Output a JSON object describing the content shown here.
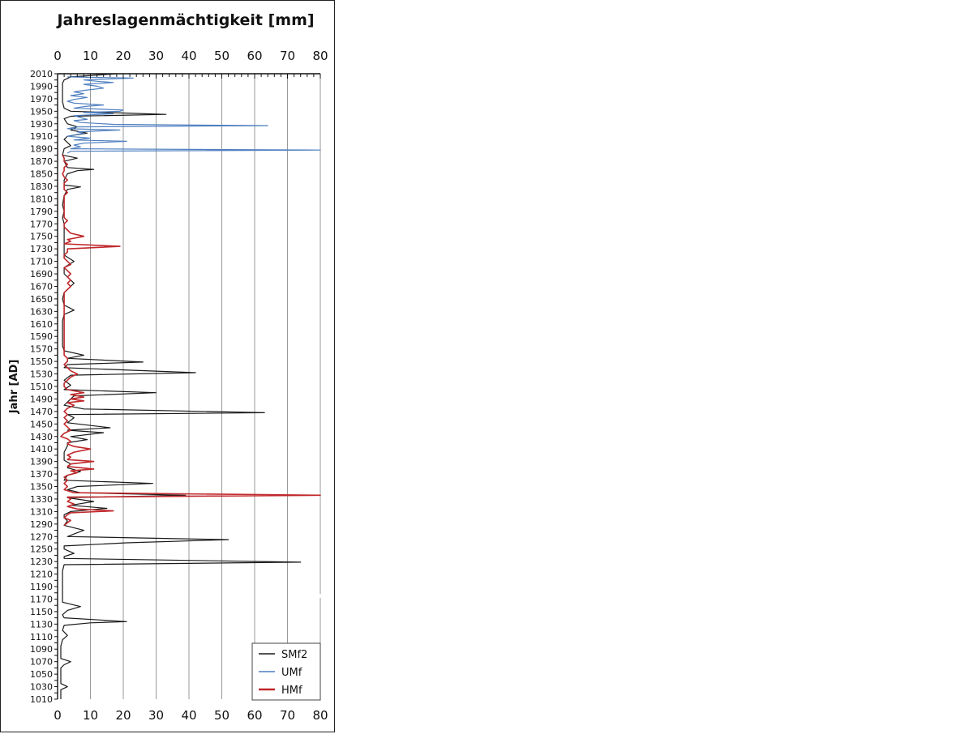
{
  "chart_data": {
    "type": "line",
    "orientation": "vertical",
    "title": "Jahreslagenmächtigkeit [mm]",
    "xlabel": "Jahreslagenmächtigkeit [mm]",
    "ylabel": "Jahr [AD]",
    "xlim": [
      0,
      80
    ],
    "ylim": [
      1010,
      2010
    ],
    "x_ticks": [
      "0",
      "10",
      "20",
      "30",
      "40",
      "50",
      "60",
      "70",
      "80"
    ],
    "y_ticks": [
      "2010",
      "1990",
      "1970",
      "1950",
      "1930",
      "1910",
      "1890",
      "1870",
      "1850",
      "1830",
      "1810",
      "1790",
      "1770",
      "1750",
      "1730",
      "1710",
      "1690",
      "1670",
      "1650",
      "1630",
      "1610",
      "1590",
      "1570",
      "1550",
      "1530",
      "1510",
      "1490",
      "1470",
      "1450",
      "1430",
      "1410",
      "1390",
      "1370",
      "1350",
      "1330",
      "1310",
      "1290",
      "1270",
      "1250",
      "1230",
      "1210",
      "1190",
      "1170",
      "1150",
      "1130",
      "1110",
      "1090",
      "1070",
      "1050",
      "1030",
      "1010"
    ],
    "grid": "vertical",
    "legend_position": "bottom-right",
    "series": [
      {
        "name": "SMf2",
        "color": "#1a1a1a",
        "points": [
          [
            2010,
            18
          ],
          [
            2005,
            4
          ],
          [
            2000,
            2
          ],
          [
            1995,
            1.5
          ],
          [
            1985,
            1.5
          ],
          [
            1975,
            1.5
          ],
          [
            1965,
            1.5
          ],
          [
            1955,
            2
          ],
          [
            1950,
            4
          ],
          [
            1947,
            21
          ],
          [
            1945,
            33
          ],
          [
            1942,
            4
          ],
          [
            1938,
            2
          ],
          [
            1930,
            3
          ],
          [
            1925,
            6
          ],
          [
            1920,
            4
          ],
          [
            1915,
            9
          ],
          [
            1910,
            3
          ],
          [
            1905,
            2
          ],
          [
            1900,
            3
          ],
          [
            1895,
            4
          ],
          [
            1890,
            2
          ],
          [
            1880,
            1.5
          ],
          [
            1875,
            6
          ],
          [
            1870,
            2
          ],
          [
            1860,
            3
          ],
          [
            1857,
            11
          ],
          [
            1855,
            6
          ],
          [
            1850,
            3
          ],
          [
            1840,
            2
          ],
          [
            1832,
            2
          ],
          [
            1829,
            7
          ],
          [
            1825,
            3
          ],
          [
            1815,
            2
          ],
          [
            1800,
            1.5
          ],
          [
            1790,
            2
          ],
          [
            1780,
            1.5
          ],
          [
            1770,
            2
          ],
          [
            1760,
            2
          ],
          [
            1750,
            2
          ],
          [
            1740,
            2
          ],
          [
            1730,
            2
          ],
          [
            1720,
            2
          ],
          [
            1710,
            5
          ],
          [
            1700,
            2
          ],
          [
            1690,
            2
          ],
          [
            1685,
            3
          ],
          [
            1675,
            5
          ],
          [
            1670,
            4
          ],
          [
            1660,
            2
          ],
          [
            1650,
            1.5
          ],
          [
            1640,
            2
          ],
          [
            1632,
            5
          ],
          [
            1625,
            2
          ],
          [
            1615,
            1.5
          ],
          [
            1605,
            1.5
          ],
          [
            1595,
            1.5
          ],
          [
            1585,
            1.5
          ],
          [
            1575,
            1.5
          ],
          [
            1567,
            2
          ],
          [
            1560,
            8
          ],
          [
            1555,
            3
          ],
          [
            1549,
            26
          ],
          [
            1545,
            3
          ],
          [
            1540,
            2
          ],
          [
            1532,
            42
          ],
          [
            1528,
            4
          ],
          [
            1520,
            2
          ],
          [
            1512,
            4
          ],
          [
            1505,
            2
          ],
          [
            1500,
            30
          ],
          [
            1495,
            5
          ],
          [
            1485,
            3
          ],
          [
            1480,
            2
          ],
          [
            1474,
            8
          ],
          [
            1468,
            63
          ],
          [
            1465,
            3
          ],
          [
            1460,
            5
          ],
          [
            1452,
            3
          ],
          [
            1444,
            16
          ],
          [
            1440,
            3
          ],
          [
            1436,
            14
          ],
          [
            1430,
            4
          ],
          [
            1425,
            9
          ],
          [
            1420,
            3
          ],
          [
            1415,
            3
          ],
          [
            1405,
            2
          ],
          [
            1400,
            2
          ],
          [
            1392,
            2
          ],
          [
            1386,
            4
          ],
          [
            1380,
            3
          ],
          [
            1374,
            7
          ],
          [
            1368,
            3
          ],
          [
            1360,
            2
          ],
          [
            1355,
            29
          ],
          [
            1350,
            6
          ],
          [
            1345,
            3
          ],
          [
            1340,
            7
          ],
          [
            1336,
            39
          ],
          [
            1332,
            3
          ],
          [
            1326,
            11
          ],
          [
            1320,
            4
          ],
          [
            1315,
            15
          ],
          [
            1310,
            4
          ],
          [
            1305,
            2
          ],
          [
            1300,
            2
          ],
          [
            1295,
            3
          ],
          [
            1288,
            2
          ],
          [
            1280,
            8
          ],
          [
            1276,
            6
          ],
          [
            1270,
            3
          ],
          [
            1265,
            52
          ],
          [
            1260,
            21
          ],
          [
            1255,
            2
          ],
          [
            1250,
            2
          ],
          [
            1243,
            5
          ],
          [
            1238,
            2
          ],
          [
            1235,
            2
          ],
          [
            1229,
            74
          ],
          [
            1225,
            2
          ],
          [
            1215,
            1.5
          ],
          [
            1205,
            1.5
          ],
          [
            1195,
            1.5
          ],
          [
            1185,
            1.5
          ],
          [
            1175,
            1.5
          ],
          [
            1165,
            1.5
          ],
          [
            1158,
            7
          ],
          [
            1152,
            3
          ],
          [
            1145,
            1.5
          ],
          [
            1140,
            2
          ],
          [
            1134,
            21
          ],
          [
            1132,
            10
          ],
          [
            1128,
            2
          ],
          [
            1120,
            1.5
          ],
          [
            1112,
            3
          ],
          [
            1105,
            1.5
          ],
          [
            1095,
            1
          ],
          [
            1085,
            1
          ],
          [
            1075,
            1
          ],
          [
            1070,
            4
          ],
          [
            1065,
            2
          ],
          [
            1060,
            1
          ],
          [
            1055,
            1
          ],
          [
            1050,
            1
          ],
          [
            1045,
            1
          ],
          [
            1040,
            1
          ],
          [
            1035,
            1
          ],
          [
            1030,
            3
          ],
          [
            1025,
            1
          ],
          [
            1020,
            1
          ],
          [
            1015,
            1
          ],
          [
            1010,
            1
          ]
        ]
      },
      {
        "name": "UMf",
        "color": "#4f7fc0",
        "points": [
          [
            2005,
            3
          ],
          [
            2003,
            23
          ],
          [
            2000,
            8
          ],
          [
            1998,
            12
          ],
          [
            1996,
            17
          ],
          [
            1993,
            8
          ],
          [
            1990,
            12
          ],
          [
            1987,
            14
          ],
          [
            1984,
            9
          ],
          [
            1981,
            5
          ],
          [
            1978,
            8
          ],
          [
            1975,
            4
          ],
          [
            1972,
            9
          ],
          [
            1969,
            5
          ],
          [
            1966,
            3
          ],
          [
            1963,
            5
          ],
          [
            1960,
            14
          ],
          [
            1958,
            9
          ],
          [
            1955,
            5
          ],
          [
            1952,
            20
          ],
          [
            1950,
            19
          ],
          [
            1948,
            8
          ],
          [
            1946,
            17
          ],
          [
            1943,
            5
          ],
          [
            1940,
            7
          ],
          [
            1937,
            9
          ],
          [
            1935,
            5
          ],
          [
            1932,
            7
          ],
          [
            1929,
            17
          ],
          [
            1927,
            64
          ],
          [
            1925,
            6
          ],
          [
            1922,
            3
          ],
          [
            1920,
            19
          ],
          [
            1917,
            6
          ],
          [
            1915,
            8
          ],
          [
            1912,
            5
          ],
          [
            1910,
            3
          ],
          [
            1907,
            10
          ],
          [
            1904,
            5
          ],
          [
            1902,
            21
          ],
          [
            1899,
            8
          ],
          [
            1896,
            5
          ],
          [
            1893,
            7
          ],
          [
            1890,
            4
          ],
          [
            1888,
            80
          ],
          [
            1886,
            4
          ],
          [
            1883,
            3
          ]
        ]
      },
      {
        "name": "HMf",
        "color": "#c0282b",
        "points": [
          [
            1880,
            1.5
          ],
          [
            1875,
            2
          ],
          [
            1870,
            2
          ],
          [
            1865,
            3
          ],
          [
            1860,
            2
          ],
          [
            1855,
            2
          ],
          [
            1850,
            1.5
          ],
          [
            1845,
            2
          ],
          [
            1840,
            3
          ],
          [
            1835,
            2
          ],
          [
            1830,
            2
          ],
          [
            1825,
            2
          ],
          [
            1820,
            3
          ],
          [
            1815,
            2
          ],
          [
            1810,
            2
          ],
          [
            1805,
            2
          ],
          [
            1800,
            2
          ],
          [
            1795,
            2
          ],
          [
            1790,
            2
          ],
          [
            1785,
            2
          ],
          [
            1780,
            2
          ],
          [
            1775,
            3
          ],
          [
            1770,
            2
          ],
          [
            1765,
            2
          ],
          [
            1760,
            3
          ],
          [
            1755,
            4
          ],
          [
            1750,
            8
          ],
          [
            1745,
            3
          ],
          [
            1742,
            4
          ],
          [
            1738,
            2
          ],
          [
            1734,
            19
          ],
          [
            1730,
            3
          ],
          [
            1725,
            3
          ],
          [
            1720,
            2
          ],
          [
            1715,
            2
          ],
          [
            1710,
            3
          ],
          [
            1705,
            4
          ],
          [
            1700,
            2
          ],
          [
            1695,
            3
          ],
          [
            1690,
            4
          ],
          [
            1685,
            3
          ],
          [
            1680,
            4
          ],
          [
            1675,
            3
          ],
          [
            1670,
            4
          ],
          [
            1665,
            3
          ],
          [
            1660,
            2
          ],
          [
            1570,
            2
          ],
          [
            1565,
            2
          ],
          [
            1560,
            2
          ],
          [
            1555,
            3
          ],
          [
            1550,
            3
          ],
          [
            1545,
            2
          ],
          [
            1540,
            3
          ],
          [
            1535,
            4
          ],
          [
            1530,
            6
          ],
          [
            1525,
            4
          ],
          [
            1520,
            3
          ],
          [
            1515,
            2
          ],
          [
            1510,
            2
          ],
          [
            1505,
            3
          ],
          [
            1500,
            8
          ],
          [
            1497,
            4
          ],
          [
            1493,
            8
          ],
          [
            1490,
            4
          ],
          [
            1487,
            8
          ],
          [
            1484,
            3
          ],
          [
            1480,
            5
          ],
          [
            1475,
            3
          ],
          [
            1470,
            2
          ],
          [
            1465,
            3
          ],
          [
            1460,
            2
          ],
          [
            1455,
            3
          ],
          [
            1450,
            2
          ],
          [
            1445,
            3
          ],
          [
            1440,
            4
          ],
          [
            1435,
            2
          ],
          [
            1430,
            1
          ],
          [
            1426,
            3
          ],
          [
            1422,
            4
          ],
          [
            1418,
            3
          ],
          [
            1414,
            5
          ],
          [
            1410,
            10
          ],
          [
            1405,
            5
          ],
          [
            1400,
            3
          ],
          [
            1397,
            4
          ],
          [
            1393,
            3
          ],
          [
            1390,
            11
          ],
          [
            1386,
            4
          ],
          [
            1382,
            3
          ],
          [
            1378,
            11
          ],
          [
            1375,
            4
          ],
          [
            1372,
            6
          ],
          [
            1368,
            3
          ],
          [
            1365,
            2
          ],
          [
            1360,
            3
          ],
          [
            1355,
            2
          ],
          [
            1350,
            3
          ],
          [
            1345,
            2
          ],
          [
            1340,
            5
          ],
          [
            1336,
            80
          ],
          [
            1333,
            3
          ],
          [
            1330,
            4
          ],
          [
            1326,
            3
          ],
          [
            1322,
            5
          ],
          [
            1318,
            3
          ],
          [
            1314,
            6
          ],
          [
            1311,
            17
          ],
          [
            1308,
            4
          ],
          [
            1305,
            3
          ],
          [
            1300,
            2
          ],
          [
            1296,
            4
          ],
          [
            1292,
            3
          ],
          [
            1288,
            2
          ]
        ]
      }
    ],
    "legend": [
      "SMf2",
      "UMf",
      "HMf"
    ]
  }
}
